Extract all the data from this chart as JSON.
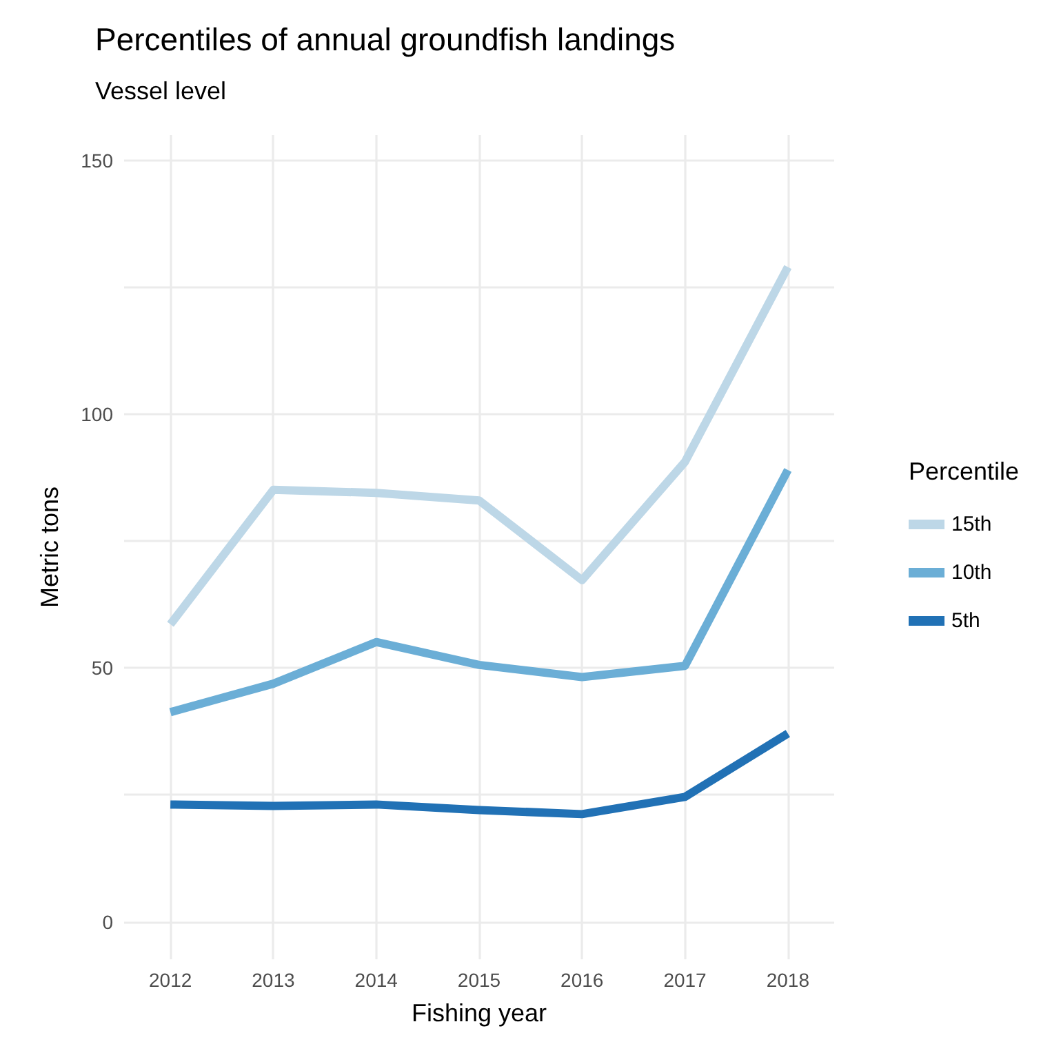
{
  "chart_data": {
    "type": "line",
    "title": "Percentiles of annual groundfish landings",
    "subtitle": "Vessel level",
    "xlabel": "Fishing year",
    "ylabel": "Metric tons",
    "legend_title": "Percentile",
    "x": [
      2012,
      2013,
      2014,
      2015,
      2016,
      2017,
      2018
    ],
    "series": [
      {
        "name": "15th",
        "color": "#bdd7e7",
        "values": [
          58.6,
          85.1,
          84.5,
          83,
          67.3,
          90.6,
          129
        ]
      },
      {
        "name": "10th",
        "color": "#6baed6",
        "values": [
          41.3,
          46.9,
          55.1,
          50.6,
          48.2,
          50.4,
          89
        ]
      },
      {
        "name": "5th",
        "color": "#2171b5",
        "values": [
          23.1,
          22.8,
          23.1,
          22,
          21.2,
          24.6,
          37.1
        ]
      }
    ],
    "xlim": [
      2011.55,
      2018.45
    ],
    "xticks": [
      2012,
      2013,
      2014,
      2015,
      2016,
      2017,
      2018
    ],
    "ylim": [
      -7.4,
      155
    ],
    "yticks": [
      0,
      {
        "value": 25,
        "label": null
      },
      50,
      {
        "value": 75,
        "label": null
      },
      100,
      {
        "value": 125,
        "label": null
      },
      150
    ],
    "grid": true,
    "legend": "right",
    "marker": "none",
    "line_style": "solid"
  }
}
